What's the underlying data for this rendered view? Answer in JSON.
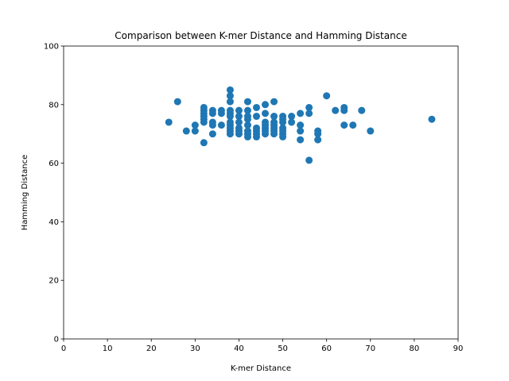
{
  "chart_data": {
    "type": "scatter",
    "title": "Comparison between K-mer Distance and Hamming Distance",
    "xlabel": "K-mer Distance",
    "ylabel": "Hamming Distance",
    "xlim": [
      0,
      90
    ],
    "ylim": [
      0,
      100
    ],
    "xticks": [
      0,
      10,
      20,
      30,
      40,
      50,
      60,
      70,
      80,
      90
    ],
    "yticks": [
      0,
      20,
      40,
      60,
      80,
      100
    ],
    "grid": false,
    "marker_color": "#1f77b4",
    "points": [
      [
        24,
        74
      ],
      [
        26,
        81
      ],
      [
        28,
        71
      ],
      [
        30,
        73
      ],
      [
        30,
        71
      ],
      [
        32,
        79
      ],
      [
        32,
        78
      ],
      [
        32,
        77
      ],
      [
        32,
        76
      ],
      [
        32,
        75
      ],
      [
        32,
        74
      ],
      [
        32,
        67
      ],
      [
        34,
        78
      ],
      [
        34,
        77
      ],
      [
        34,
        74
      ],
      [
        34,
        73
      ],
      [
        34,
        70
      ],
      [
        36,
        78
      ],
      [
        36,
        77
      ],
      [
        36,
        73
      ],
      [
        38,
        85
      ],
      [
        38,
        83
      ],
      [
        38,
        81
      ],
      [
        38,
        78
      ],
      [
        38,
        77
      ],
      [
        38,
        76
      ],
      [
        38,
        74
      ],
      [
        38,
        73
      ],
      [
        38,
        72
      ],
      [
        38,
        71
      ],
      [
        38,
        70
      ],
      [
        40,
        78
      ],
      [
        40,
        76
      ],
      [
        40,
        74
      ],
      [
        40,
        72
      ],
      [
        40,
        71
      ],
      [
        40,
        70
      ],
      [
        42,
        81
      ],
      [
        42,
        78
      ],
      [
        42,
        76
      ],
      [
        42,
        75
      ],
      [
        42,
        73
      ],
      [
        42,
        71
      ],
      [
        42,
        70
      ],
      [
        42,
        69
      ],
      [
        44,
        79
      ],
      [
        44,
        76
      ],
      [
        44,
        72
      ],
      [
        44,
        71
      ],
      [
        44,
        70
      ],
      [
        44,
        69
      ],
      [
        46,
        80
      ],
      [
        46,
        77
      ],
      [
        46,
        74
      ],
      [
        46,
        73
      ],
      [
        46,
        72
      ],
      [
        46,
        71
      ],
      [
        46,
        70
      ],
      [
        48,
        81
      ],
      [
        48,
        76
      ],
      [
        48,
        74
      ],
      [
        48,
        73
      ],
      [
        48,
        72
      ],
      [
        48,
        71
      ],
      [
        48,
        70
      ],
      [
        50,
        76
      ],
      [
        50,
        75
      ],
      [
        50,
        74
      ],
      [
        50,
        72
      ],
      [
        50,
        71
      ],
      [
        50,
        70
      ],
      [
        50,
        69
      ],
      [
        52,
        76
      ],
      [
        52,
        74
      ],
      [
        54,
        77
      ],
      [
        54,
        73
      ],
      [
        54,
        71
      ],
      [
        54,
        68
      ],
      [
        56,
        79
      ],
      [
        56,
        77
      ],
      [
        56,
        61
      ],
      [
        58,
        71
      ],
      [
        58,
        70
      ],
      [
        58,
        68
      ],
      [
        60,
        83
      ],
      [
        62,
        78
      ],
      [
        64,
        79
      ],
      [
        64,
        78
      ],
      [
        64,
        73
      ],
      [
        66,
        73
      ],
      [
        68,
        78
      ],
      [
        70,
        71
      ],
      [
        84,
        75
      ]
    ]
  }
}
